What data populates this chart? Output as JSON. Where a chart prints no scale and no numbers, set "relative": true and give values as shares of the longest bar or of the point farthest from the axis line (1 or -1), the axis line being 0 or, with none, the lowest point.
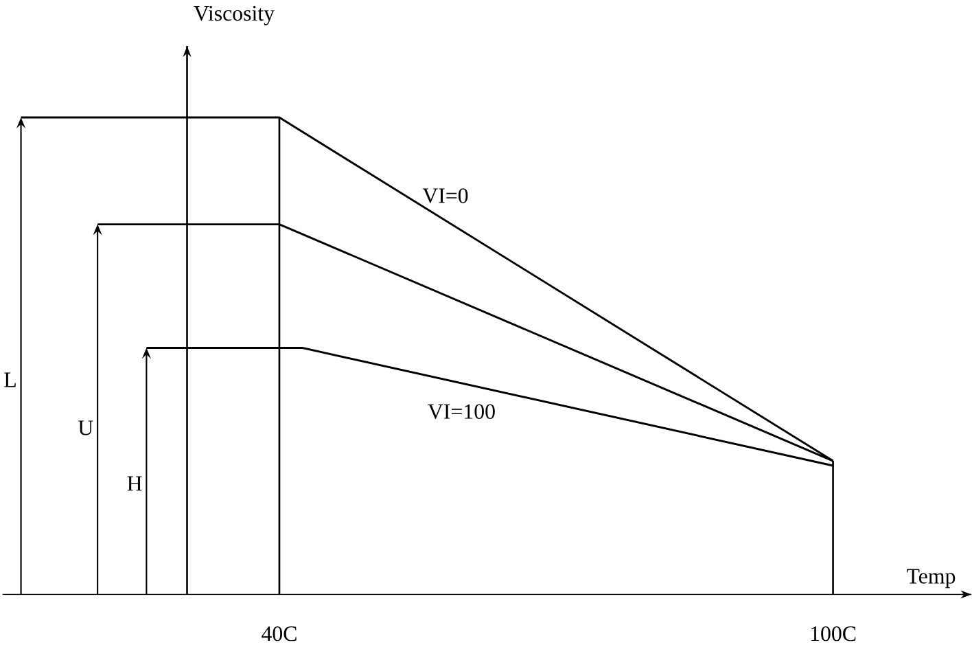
{
  "chart_data": {
    "type": "line",
    "relative": true,
    "xlabel": "Temp",
    "ylabel": "Viscosity",
    "xlim": [
      10,
      115
    ],
    "xticks": [
      {
        "value": 40,
        "label": "40C"
      },
      {
        "value": 100,
        "label": "100C"
      }
    ],
    "series": [
      {
        "name": "VI=0",
        "color": "#000000",
        "x": [
          12,
          40,
          100
        ],
        "values": [
          1,
          1,
          0.28
        ]
      },
      {
        "color": "#000000",
        "x": [
          20.3,
          40,
          100
        ],
        "values": [
          0.776,
          0.776,
          0.28
        ]
      },
      {
        "name": "VI=100",
        "color": "#000000",
        "x": [
          25.6,
          42.5,
          100
        ],
        "values": [
          0.517,
          0.517,
          0.27
        ]
      }
    ],
    "ref_lines": [
      {
        "axis": "x",
        "value": 30
      },
      {
        "axis": "x",
        "value": 40
      },
      {
        "axis": "x",
        "value": 100
      }
    ],
    "annotations": [
      "L",
      "U",
      "H"
    ],
    "legend": false,
    "grid": false,
    "marker": "none",
    "line_style": "solid"
  }
}
